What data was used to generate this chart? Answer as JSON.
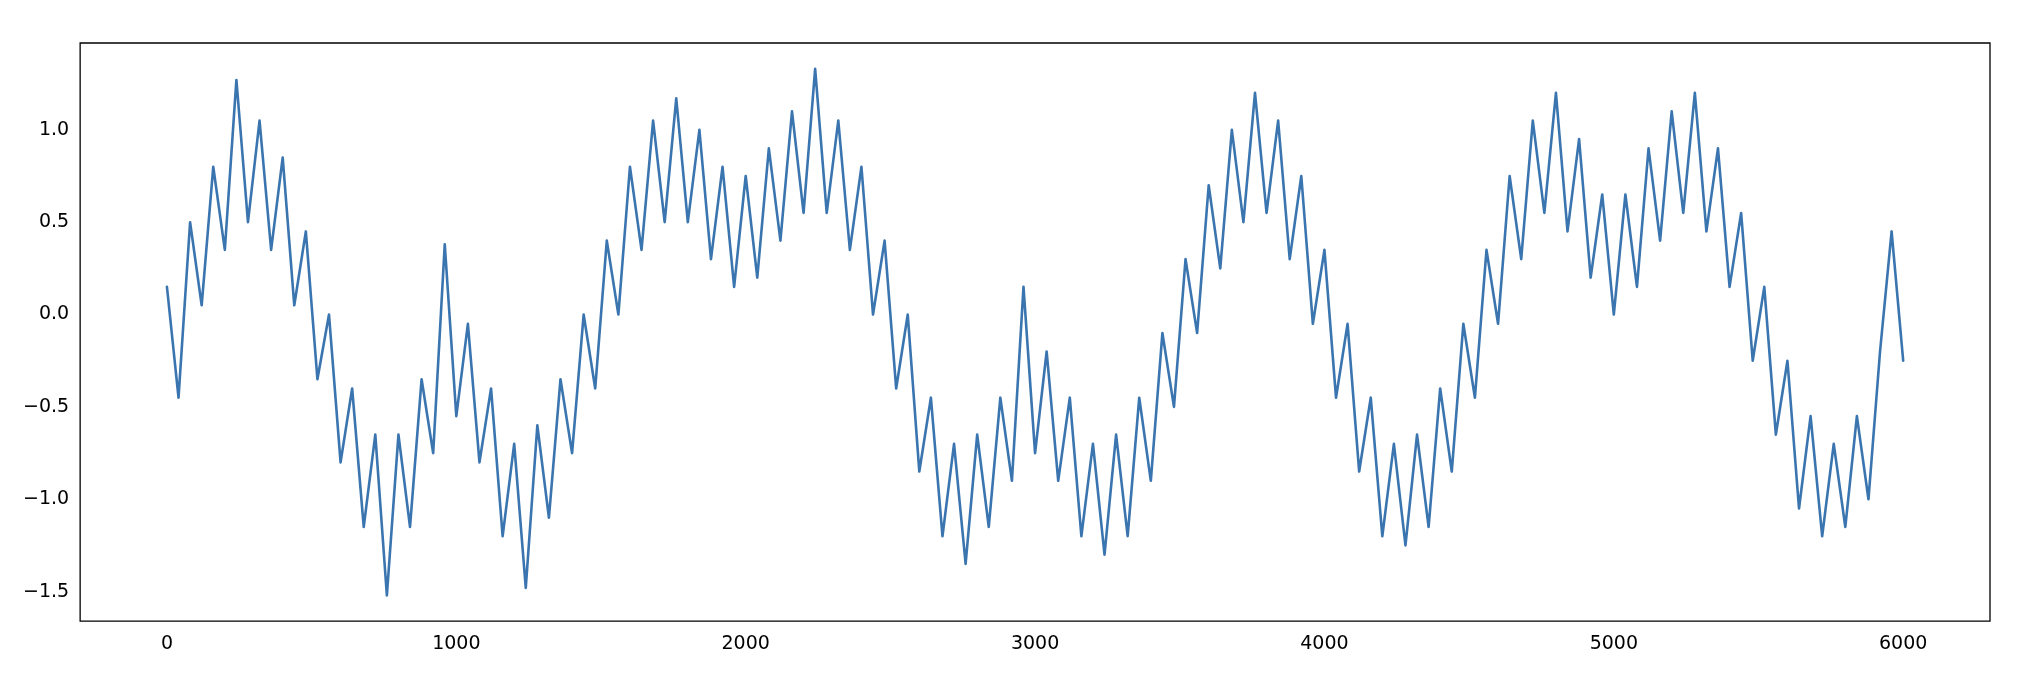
{
  "chart_data": {
    "type": "line",
    "color": "#3b75af",
    "marker": "none",
    "grid": false,
    "legend": false,
    "xlim": [
      -300,
      6300
    ],
    "xticks": [
      0,
      1000,
      2000,
      3000,
      4000,
      5000,
      6000
    ],
    "ylim": [
      -1.66,
      1.47
    ],
    "yticks": [
      {
        "value": -1.5,
        "label": "−1.5"
      },
      {
        "value": -1,
        "label": "−1.0"
      },
      {
        "value": -0.5,
        "label": "−0.5"
      },
      {
        "value": 0,
        "label": "0.0"
      },
      {
        "value": 0.5,
        "label": "0.5"
      },
      {
        "value": 1,
        "label": "1.0"
      }
    ],
    "x": [
      0,
      40,
      80,
      120,
      160,
      200,
      240,
      280,
      320,
      360,
      400,
      440,
      480,
      520,
      560,
      600,
      640,
      680,
      720,
      760,
      800,
      840,
      880,
      920,
      960,
      1000,
      1040,
      1080,
      1120,
      1160,
      1200,
      1240,
      1280,
      1320,
      1360,
      1400,
      1440,
      1480,
      1520,
      1560,
      1600,
      1640,
      1680,
      1720,
      1760,
      1800,
      1840,
      1880,
      1920,
      1960,
      2000,
      2040,
      2080,
      2120,
      2160,
      2200,
      2240,
      2280,
      2320,
      2360,
      2400,
      2440,
      2480,
      2520,
      2560,
      2600,
      2640,
      2680,
      2720,
      2760,
      2800,
      2840,
      2880,
      2920,
      2960,
      3000,
      3040,
      3080,
      3120,
      3160,
      3200,
      3240,
      3280,
      3320,
      3360,
      3400,
      3440,
      3480,
      3520,
      3560,
      3600,
      3640,
      3680,
      3720,
      3760,
      3800,
      3840,
      3880,
      3920,
      3960,
      4000,
      4040,
      4080,
      4120,
      4160,
      4200,
      4240,
      4280,
      4320,
      4360,
      4400,
      4440,
      4480,
      4520,
      4560,
      4600,
      4640,
      4680,
      4720,
      4760,
      4800,
      4840,
      4880,
      4920,
      4960,
      5000,
      5040,
      5080,
      5120,
      5160,
      5200,
      5240,
      5280,
      5320,
      5360,
      5400,
      5440,
      5480,
      5520,
      5560,
      5600,
      5640,
      5680,
      5720,
      5760,
      5800,
      5840,
      5880,
      5920,
      5960,
      6000
    ],
    "values": [
      0.15,
      -0.45,
      0.5,
      0.05,
      0.8,
      0.35,
      1.27,
      0.5,
      1.05,
      0.35,
      0.85,
      0.05,
      0.45,
      -0.35,
      0.0,
      -0.8,
      -0.4,
      -1.15,
      -0.65,
      -1.52,
      -0.65,
      -1.15,
      -0.35,
      -0.75,
      0.38,
      -0.55,
      -0.05,
      -0.8,
      -0.4,
      -1.2,
      -0.7,
      -1.48,
      -0.6,
      -1.1,
      -0.35,
      -0.75,
      0.0,
      -0.4,
      0.4,
      0.0,
      0.8,
      0.35,
      1.05,
      0.5,
      1.17,
      0.5,
      1.0,
      0.3,
      0.8,
      0.15,
      0.75,
      0.2,
      0.9,
      0.4,
      1.1,
      0.55,
      1.33,
      0.55,
      1.05,
      0.35,
      0.8,
      0.0,
      0.4,
      -0.4,
      0.0,
      -0.85,
      -0.45,
      -1.2,
      -0.7,
      -1.35,
      -0.65,
      -1.15,
      -0.45,
      -0.9,
      0.15,
      -0.75,
      -0.2,
      -0.9,
      -0.45,
      -1.2,
      -0.7,
      -1.3,
      -0.65,
      -1.2,
      -0.45,
      -0.9,
      -0.1,
      -0.5,
      0.3,
      -0.1,
      0.7,
      0.25,
      1.0,
      0.5,
      1.2,
      0.55,
      1.05,
      0.3,
      0.75,
      -0.05,
      0.35,
      -0.45,
      -0.05,
      -0.85,
      -0.45,
      -1.2,
      -0.7,
      -1.25,
      -0.65,
      -1.15,
      -0.4,
      -0.85,
      -0.05,
      -0.45,
      0.35,
      -0.05,
      0.75,
      0.3,
      1.05,
      0.55,
      1.2,
      0.45,
      0.95,
      0.2,
      0.65,
      0.0,
      0.65,
      0.15,
      0.9,
      0.4,
      1.1,
      0.55,
      1.2,
      0.45,
      0.9,
      0.15,
      0.55,
      -0.25,
      0.15,
      -0.65,
      -0.25,
      -1.05,
      -0.55,
      -1.2,
      -0.7,
      -1.15,
      -0.55,
      -1.0,
      -0.2,
      0.45,
      -0.25
    ]
  }
}
